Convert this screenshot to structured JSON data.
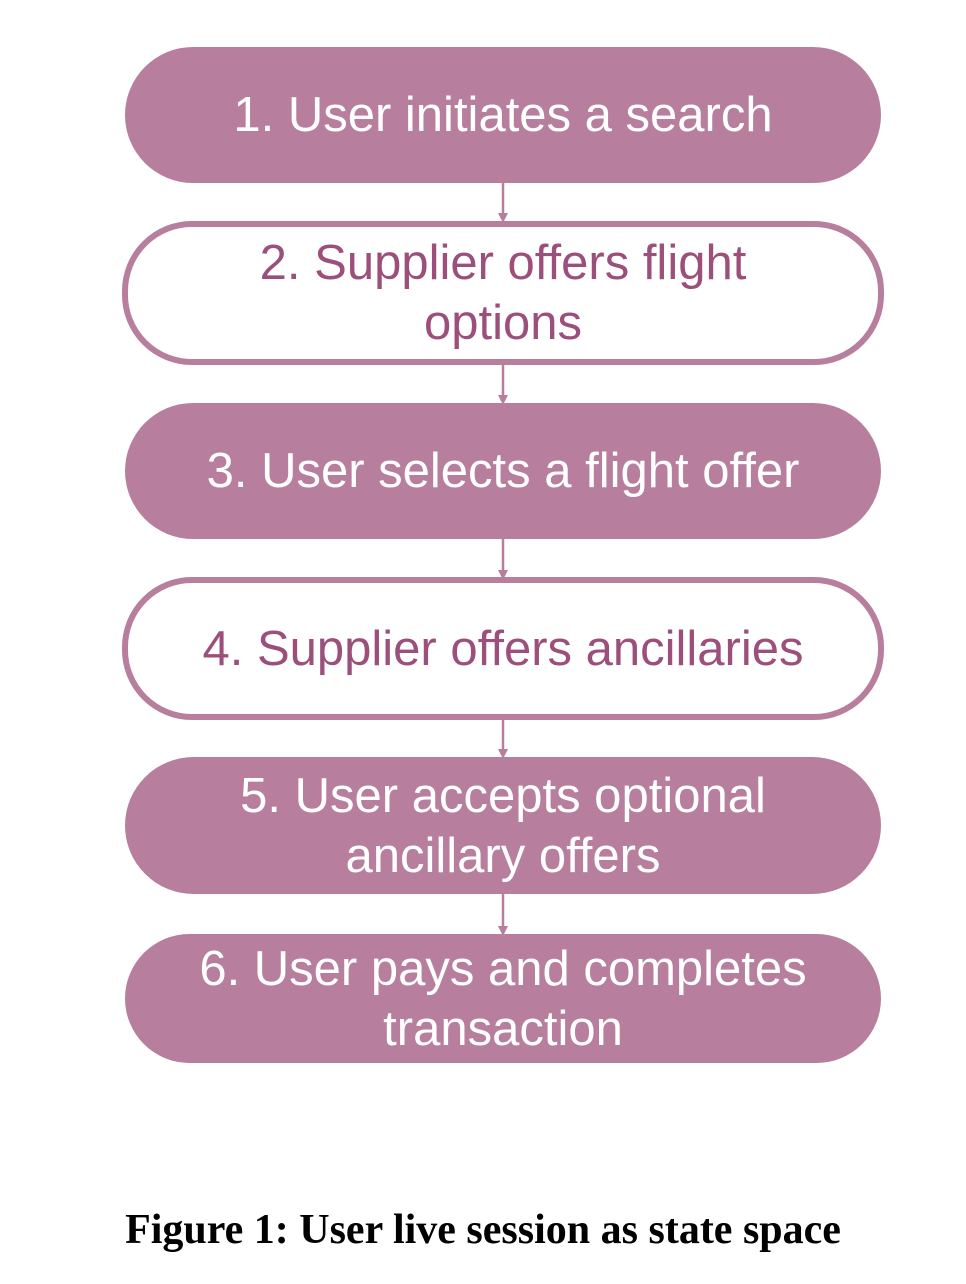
{
  "steps": [
    {
      "label": "1. User initiates a search",
      "style": "filled"
    },
    {
      "label": "2. Supplier offers flight options",
      "style": "outlined"
    },
    {
      "label": "3. User selects a flight offer",
      "style": "filled"
    },
    {
      "label": "4. Supplier offers ancillaries",
      "style": "outlined"
    },
    {
      "label": "5. User accepts optional ancillary offers",
      "style": "filled"
    },
    {
      "label": "6. User pays and completes transaction",
      "style": "filled"
    }
  ],
  "caption": "Figure 1: User live session as state space",
  "colors": {
    "node_fill": "#b77f9d",
    "outlined_text": "#9c4f7a",
    "arrow": "#b77f9d"
  }
}
